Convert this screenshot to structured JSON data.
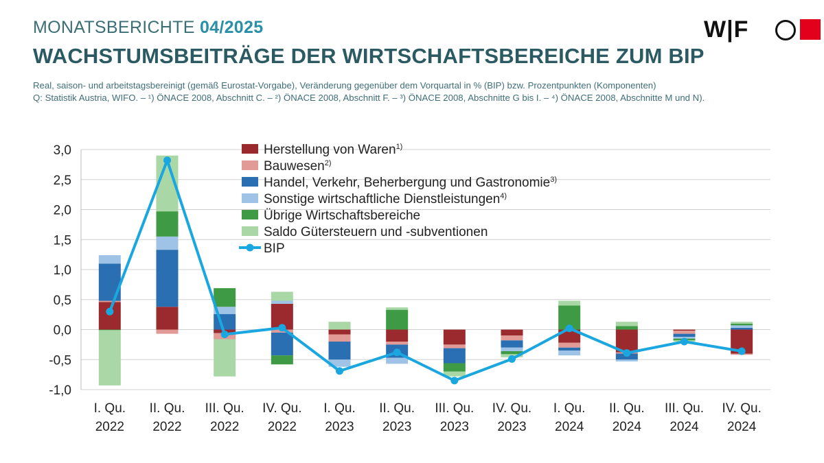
{
  "header": {
    "series_name": "MONATSBERICHTE",
    "issue": "04/2025",
    "title": "WACHSTUMSBEITRÄGE DER WIRTSCHAFTSBEREICHE ZUM BIP",
    "subtitle_line1": "Real, saison- und arbeitstagsbereinigt (gemäß Eurostat-Vorgabe), Veränderung gegenüber dem Vorquartal in % (BIP) bzw. Prozentpunkten (Komponenten)",
    "subtitle_line2": "Q: Statistik Austria, WIFO. – ¹) ÖNACE 2008, Abschnitt C. – ²) ÖNACE 2008, Abschnitt F. – ³) ÖNACE 2008, Abschnitte G bis I. – ⁴) ÖNACE 2008, Abschnitte M und N)."
  },
  "logo": {
    "text": "WIFO"
  },
  "chart_data": {
    "type": "bar",
    "stacked": true,
    "ylim": [
      -1.0,
      3.0
    ],
    "yticks": [
      3.0,
      2.5,
      2.0,
      1.5,
      1.0,
      0.5,
      0.0,
      -0.5,
      -1.0
    ],
    "ytick_labels": [
      "3,0",
      "2,5",
      "2,0",
      "1,5",
      "1,0",
      "0,5",
      "0,0",
      "-0,5",
      "-1,0"
    ],
    "grid": true,
    "legend_position": "top",
    "categories": [
      [
        "I. Qu.",
        "2022"
      ],
      [
        "II. Qu.",
        "2022"
      ],
      [
        "III. Qu.",
        "2022"
      ],
      [
        "IV. Qu.",
        "2022"
      ],
      [
        "I. Qu.",
        "2023"
      ],
      [
        "II. Qu.",
        "2023"
      ],
      [
        "III. Qu.",
        "2023"
      ],
      [
        "IV. Qu.",
        "2023"
      ],
      [
        "I. Qu.",
        "2024"
      ],
      [
        "II. Qu.",
        "2024"
      ],
      [
        "III. Qu.",
        "2024"
      ],
      [
        "IV. Qu.",
        "2024"
      ]
    ],
    "series": [
      {
        "name": "Herstellung von Waren",
        "sup": "1)",
        "color": "#9b2a2e",
        "values": [
          0.46,
          0.38,
          -0.06,
          0.43,
          -0.08,
          -0.2,
          -0.25,
          -0.1,
          -0.22,
          -0.38,
          -0.02,
          -0.4
        ]
      },
      {
        "name": "Bauwesen",
        "sup": "2)",
        "color": "#e29a96",
        "values": [
          0.02,
          -0.07,
          -0.1,
          -0.05,
          -0.12,
          -0.05,
          -0.06,
          -0.08,
          -0.08,
          -0.02,
          -0.05,
          -0.02
        ]
      },
      {
        "name": "Handel, Verkehr, Beherbergung und Gastronomie",
        "sup": "3)",
        "color": "#2b6fb3",
        "values": [
          0.62,
          0.95,
          0.26,
          -0.38,
          -0.3,
          -0.22,
          -0.25,
          -0.12,
          -0.05,
          -0.1,
          -0.05,
          0.03
        ]
      },
      {
        "name": "Sonstige wirtschaftliche Dienstleistungen",
        "sup": "4)",
        "color": "#9fc3e6",
        "values": [
          0.14,
          0.22,
          0.12,
          0.05,
          -0.12,
          -0.1,
          0.0,
          -0.06,
          -0.08,
          -0.03,
          -0.03,
          0.04
        ]
      },
      {
        "name": "Übrige Wirtschaftsbereiche",
        "sup": "",
        "color": "#3f9a45",
        "values": [
          -0.01,
          0.42,
          0.31,
          -0.15,
          -0.0,
          0.33,
          -0.14,
          -0.05,
          0.4,
          0.06,
          -0.03,
          0.03
        ]
      },
      {
        "name": "Saldo Gütersteuern und -subventionen",
        "sup": "",
        "color": "#a9d7a6",
        "values": [
          -0.92,
          0.93,
          -0.62,
          0.15,
          0.13,
          0.04,
          -0.08,
          -0.05,
          0.08,
          0.07,
          -0.02,
          0.03
        ]
      }
    ],
    "line": {
      "name": "BIP",
      "color": "#1aa6df",
      "values": [
        0.3,
        2.82,
        -0.08,
        0.03,
        -0.69,
        -0.38,
        -0.85,
        -0.49,
        0.02,
        -0.39,
        -0.2,
        -0.36
      ]
    }
  }
}
